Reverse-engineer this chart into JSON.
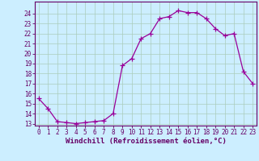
{
  "x_values": [
    0,
    1,
    2,
    3,
    4,
    5,
    6,
    7,
    8,
    9,
    10,
    11,
    12,
    13,
    14,
    15,
    16,
    17,
    18,
    19,
    20,
    21,
    22,
    23
  ],
  "y_values": [
    15.5,
    14.5,
    13.2,
    13.1,
    13.0,
    13.1,
    13.2,
    13.3,
    14.0,
    18.8,
    19.5,
    21.5,
    22.0,
    23.5,
    23.7,
    24.3,
    24.1,
    24.1,
    23.5,
    22.5,
    21.8,
    22.0,
    18.2,
    17.0
  ],
  "line_color": "#990099",
  "marker": "+",
  "marker_size": 4,
  "bg_color": "#cceeff",
  "grid_color": "#aaccbb",
  "xlabel": "Windchill (Refroidissement éolien,°C)",
  "xlabel_color": "#660066",
  "tick_color": "#660066",
  "axis_color": "#660066",
  "ylim_min": 13,
  "ylim_max": 25,
  "xlim_min": 0,
  "xlim_max": 23,
  "yticks": [
    13,
    14,
    15,
    16,
    17,
    18,
    19,
    20,
    21,
    22,
    23,
    24
  ],
  "xticks": [
    0,
    1,
    2,
    3,
    4,
    5,
    6,
    7,
    8,
    9,
    10,
    11,
    12,
    13,
    14,
    15,
    16,
    17,
    18,
    19,
    20,
    21,
    22,
    23
  ],
  "tick_fontsize": 5.5,
  "xlabel_fontsize": 6.5
}
